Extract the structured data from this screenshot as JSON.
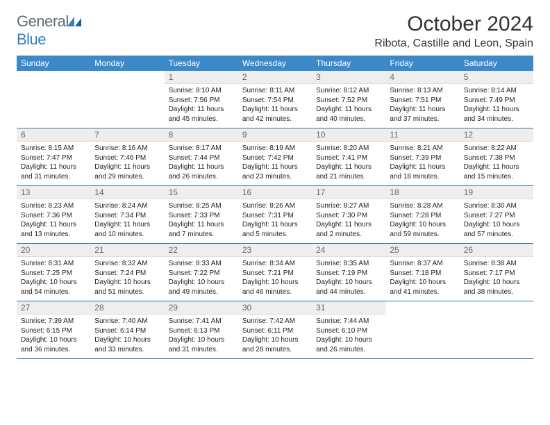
{
  "logo": {
    "general": "General",
    "blue": "Blue"
  },
  "header": {
    "month": "October 2024",
    "location": "Ribota, Castille and Leon, Spain"
  },
  "colors": {
    "header_bg": "#3b89c9",
    "header_text": "#ffffff",
    "daynum_bg": "#eeeeee",
    "daynum_text": "#666666",
    "rule": "#3b6f9e",
    "logo_gray": "#5f6b76",
    "logo_blue": "#2f7fc2"
  },
  "weekdays": [
    "Sunday",
    "Monday",
    "Tuesday",
    "Wednesday",
    "Thursday",
    "Friday",
    "Saturday"
  ],
  "weeks": [
    [
      null,
      null,
      {
        "n": "1",
        "sr": "Sunrise: 8:10 AM",
        "ss": "Sunset: 7:56 PM",
        "dl": "Daylight: 11 hours and 45 minutes."
      },
      {
        "n": "2",
        "sr": "Sunrise: 8:11 AM",
        "ss": "Sunset: 7:54 PM",
        "dl": "Daylight: 11 hours and 42 minutes."
      },
      {
        "n": "3",
        "sr": "Sunrise: 8:12 AM",
        "ss": "Sunset: 7:52 PM",
        "dl": "Daylight: 11 hours and 40 minutes."
      },
      {
        "n": "4",
        "sr": "Sunrise: 8:13 AM",
        "ss": "Sunset: 7:51 PM",
        "dl": "Daylight: 11 hours and 37 minutes."
      },
      {
        "n": "5",
        "sr": "Sunrise: 8:14 AM",
        "ss": "Sunset: 7:49 PM",
        "dl": "Daylight: 11 hours and 34 minutes."
      }
    ],
    [
      {
        "n": "6",
        "sr": "Sunrise: 8:15 AM",
        "ss": "Sunset: 7:47 PM",
        "dl": "Daylight: 11 hours and 31 minutes."
      },
      {
        "n": "7",
        "sr": "Sunrise: 8:16 AM",
        "ss": "Sunset: 7:46 PM",
        "dl": "Daylight: 11 hours and 29 minutes."
      },
      {
        "n": "8",
        "sr": "Sunrise: 8:17 AM",
        "ss": "Sunset: 7:44 PM",
        "dl": "Daylight: 11 hours and 26 minutes."
      },
      {
        "n": "9",
        "sr": "Sunrise: 8:19 AM",
        "ss": "Sunset: 7:42 PM",
        "dl": "Daylight: 11 hours and 23 minutes."
      },
      {
        "n": "10",
        "sr": "Sunrise: 8:20 AM",
        "ss": "Sunset: 7:41 PM",
        "dl": "Daylight: 11 hours and 21 minutes."
      },
      {
        "n": "11",
        "sr": "Sunrise: 8:21 AM",
        "ss": "Sunset: 7:39 PM",
        "dl": "Daylight: 11 hours and 18 minutes."
      },
      {
        "n": "12",
        "sr": "Sunrise: 8:22 AM",
        "ss": "Sunset: 7:38 PM",
        "dl": "Daylight: 11 hours and 15 minutes."
      }
    ],
    [
      {
        "n": "13",
        "sr": "Sunrise: 8:23 AM",
        "ss": "Sunset: 7:36 PM",
        "dl": "Daylight: 11 hours and 13 minutes."
      },
      {
        "n": "14",
        "sr": "Sunrise: 8:24 AM",
        "ss": "Sunset: 7:34 PM",
        "dl": "Daylight: 11 hours and 10 minutes."
      },
      {
        "n": "15",
        "sr": "Sunrise: 8:25 AM",
        "ss": "Sunset: 7:33 PM",
        "dl": "Daylight: 11 hours and 7 minutes."
      },
      {
        "n": "16",
        "sr": "Sunrise: 8:26 AM",
        "ss": "Sunset: 7:31 PM",
        "dl": "Daylight: 11 hours and 5 minutes."
      },
      {
        "n": "17",
        "sr": "Sunrise: 8:27 AM",
        "ss": "Sunset: 7:30 PM",
        "dl": "Daylight: 11 hours and 2 minutes."
      },
      {
        "n": "18",
        "sr": "Sunrise: 8:28 AM",
        "ss": "Sunset: 7:28 PM",
        "dl": "Daylight: 10 hours and 59 minutes."
      },
      {
        "n": "19",
        "sr": "Sunrise: 8:30 AM",
        "ss": "Sunset: 7:27 PM",
        "dl": "Daylight: 10 hours and 57 minutes."
      }
    ],
    [
      {
        "n": "20",
        "sr": "Sunrise: 8:31 AM",
        "ss": "Sunset: 7:25 PM",
        "dl": "Daylight: 10 hours and 54 minutes."
      },
      {
        "n": "21",
        "sr": "Sunrise: 8:32 AM",
        "ss": "Sunset: 7:24 PM",
        "dl": "Daylight: 10 hours and 51 minutes."
      },
      {
        "n": "22",
        "sr": "Sunrise: 8:33 AM",
        "ss": "Sunset: 7:22 PM",
        "dl": "Daylight: 10 hours and 49 minutes."
      },
      {
        "n": "23",
        "sr": "Sunrise: 8:34 AM",
        "ss": "Sunset: 7:21 PM",
        "dl": "Daylight: 10 hours and 46 minutes."
      },
      {
        "n": "24",
        "sr": "Sunrise: 8:35 AM",
        "ss": "Sunset: 7:19 PM",
        "dl": "Daylight: 10 hours and 44 minutes."
      },
      {
        "n": "25",
        "sr": "Sunrise: 8:37 AM",
        "ss": "Sunset: 7:18 PM",
        "dl": "Daylight: 10 hours and 41 minutes."
      },
      {
        "n": "26",
        "sr": "Sunrise: 8:38 AM",
        "ss": "Sunset: 7:17 PM",
        "dl": "Daylight: 10 hours and 38 minutes."
      }
    ],
    [
      {
        "n": "27",
        "sr": "Sunrise: 7:39 AM",
        "ss": "Sunset: 6:15 PM",
        "dl": "Daylight: 10 hours and 36 minutes."
      },
      {
        "n": "28",
        "sr": "Sunrise: 7:40 AM",
        "ss": "Sunset: 6:14 PM",
        "dl": "Daylight: 10 hours and 33 minutes."
      },
      {
        "n": "29",
        "sr": "Sunrise: 7:41 AM",
        "ss": "Sunset: 6:13 PM",
        "dl": "Daylight: 10 hours and 31 minutes."
      },
      {
        "n": "30",
        "sr": "Sunrise: 7:42 AM",
        "ss": "Sunset: 6:11 PM",
        "dl": "Daylight: 10 hours and 28 minutes."
      },
      {
        "n": "31",
        "sr": "Sunrise: 7:44 AM",
        "ss": "Sunset: 6:10 PM",
        "dl": "Daylight: 10 hours and 26 minutes."
      },
      null,
      null
    ]
  ]
}
